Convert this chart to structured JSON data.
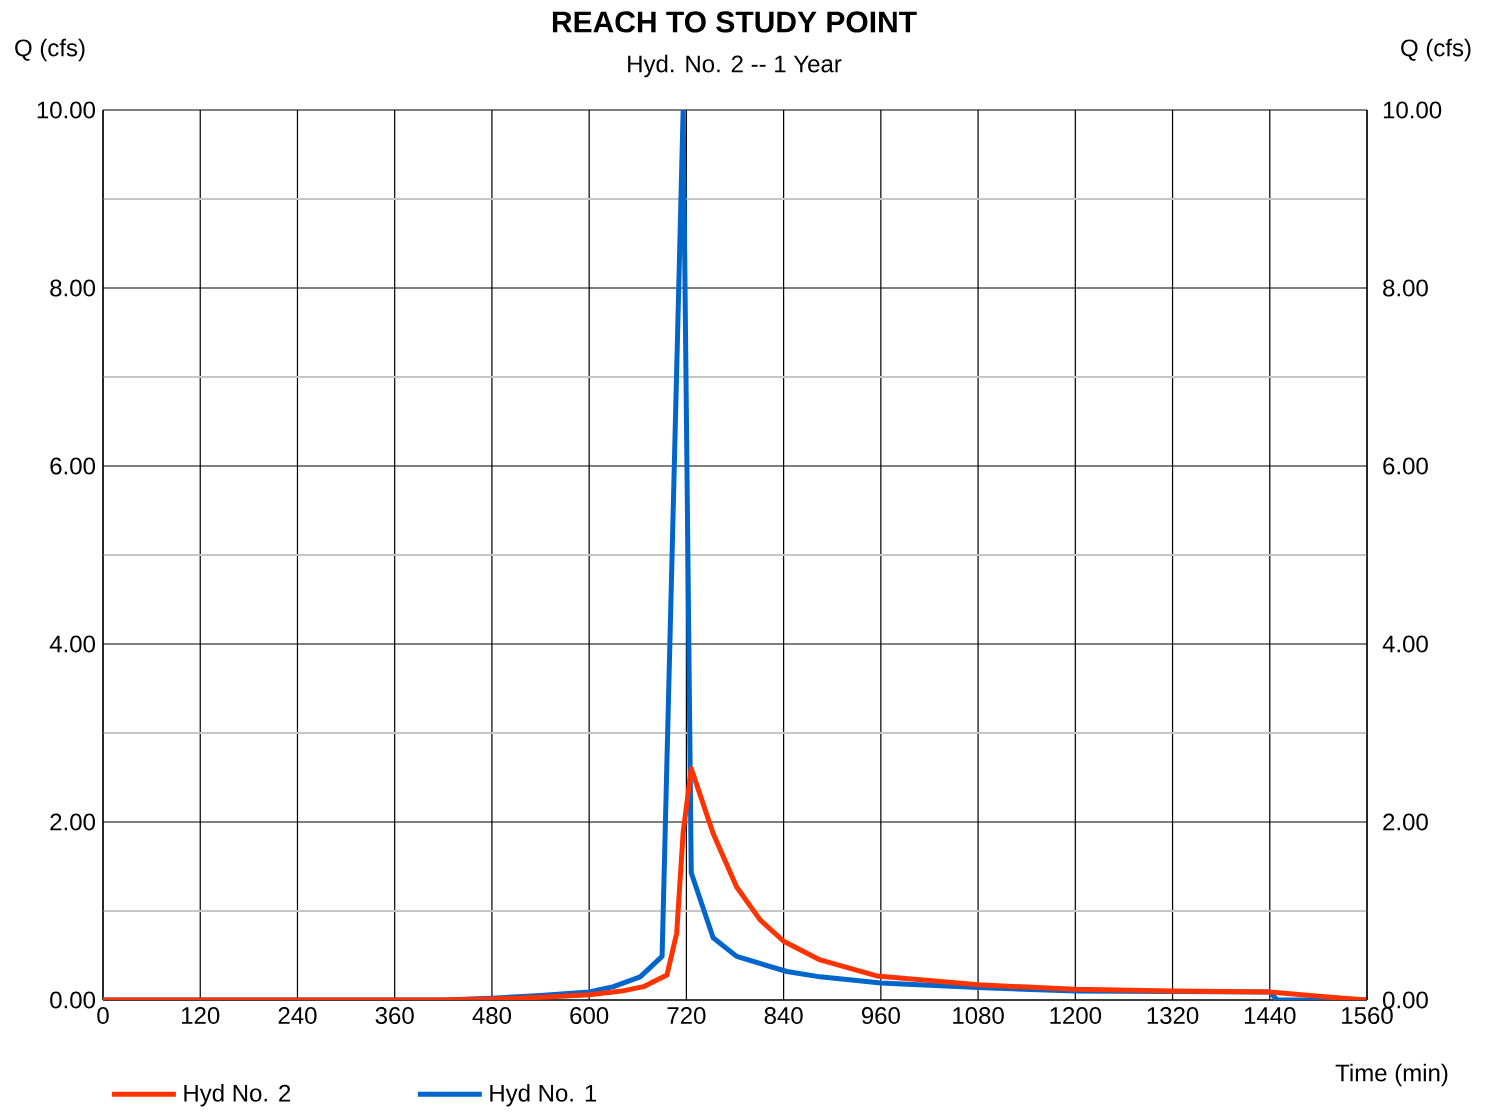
{
  "chart_data": {
    "type": "line",
    "title": "REACH TO STUDY POINT",
    "subtitle": "Hyd. No. 2 -- 1 Year",
    "xlabel": "Time (min)",
    "ylabel": "Q (cfs)",
    "y2label": "Q (cfs)",
    "series": [
      {
        "name": "Hyd No. 2",
        "color": "#ff3300",
        "x": [
          0,
          420,
          480,
          540,
          600,
          640,
          667,
          696,
          708,
          716,
          726,
          753,
          782,
          811,
          840,
          885,
          955,
          1080,
          1200,
          1320,
          1440,
          1515,
          1560
        ],
        "values": [
          0,
          0,
          0.01,
          0.03,
          0.06,
          0.1,
          0.15,
          0.28,
          0.75,
          1.88,
          2.6,
          1.87,
          1.27,
          0.9,
          0.66,
          0.45,
          0.27,
          0.17,
          0.12,
          0.1,
          0.09,
          0.03,
          0
        ]
      },
      {
        "name": "Hyd No. 1",
        "color": "#0066cc",
        "x": [
          0,
          420,
          480,
          540,
          600,
          630,
          663,
          690,
          716,
          726,
          753,
          782,
          844,
          885,
          960,
          1080,
          1200,
          1440,
          1449,
          1560
        ],
        "values": [
          0,
          0,
          0.02,
          0.05,
          0.09,
          0.15,
          0.26,
          0.49,
          10,
          1.43,
          0.7,
          0.49,
          0.32,
          0.26,
          0.19,
          0.14,
          0.1,
          0.09,
          0,
          0
        ]
      }
    ],
    "xlim": [
      0,
      1560
    ],
    "xticks": [
      0,
      120,
      240,
      360,
      480,
      600,
      720,
      840,
      960,
      1080,
      1200,
      1320,
      1440,
      1560
    ],
    "ylim": [
      0,
      10
    ],
    "yticks": [
      {
        "value": 0,
        "label": "0.00"
      },
      {
        "value": 2,
        "label": "2.00"
      },
      {
        "value": 4,
        "label": "4.00"
      },
      {
        "value": 6,
        "label": "6.00"
      },
      {
        "value": 8,
        "label": "8.00"
      },
      {
        "value": 10,
        "label": "10.00"
      }
    ],
    "y2lim": [
      0,
      10
    ],
    "y2ticks": [
      {
        "value": 0,
        "label": "0.00"
      },
      {
        "value": 2,
        "label": "2.00"
      },
      {
        "value": 4,
        "label": "4.00"
      },
      {
        "value": 6,
        "label": "6.00"
      },
      {
        "value": 8,
        "label": "8.00"
      },
      {
        "value": 10,
        "label": "10.00"
      }
    ],
    "grid": true,
    "legend": "bottom left",
    "marker": "none",
    "line_style": "solid"
  }
}
